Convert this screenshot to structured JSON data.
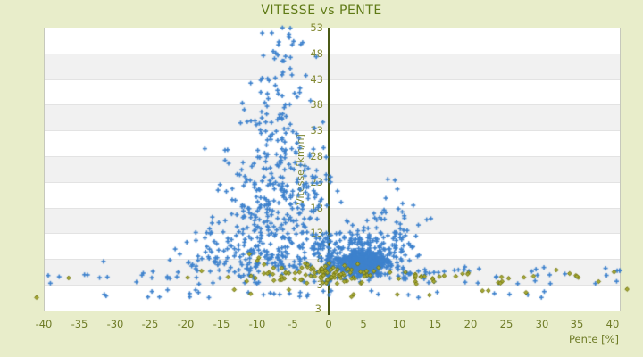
{
  "header": {
    "title": "VITESSE vs PENTE"
  },
  "axes": {
    "x": {
      "title": "Pente [%]",
      "ticks": [
        -40,
        -35,
        -30,
        -25,
        -20,
        -15,
        -10,
        -5,
        0,
        5,
        10,
        15,
        20,
        25,
        30,
        35,
        40
      ]
    },
    "y": {
      "title": "Vitesse [km/h]",
      "ticks": [
        53,
        48,
        43,
        38,
        33,
        28,
        23,
        18,
        13,
        8,
        3
      ],
      "min_edge_label": "3"
    }
  },
  "colors": {
    "background": "#e8edca",
    "plot_background": "#ffffff",
    "band_alt": "#f1f1f1",
    "band_border": "#e3e3e3",
    "plot_border": "#c6c8bc",
    "zero_line": "#4b5a17",
    "blue_marker": "#3e82cd",
    "olive_marker_fill": "#a8ab35",
    "olive_marker_stroke": "#6f720c",
    "title_text": "#5f7a16",
    "tick_text": "#6e7b26"
  },
  "chart_data": {
    "type": "scatter",
    "title": "VITESSE vs PENTE",
    "xlabel": "Pente [%]",
    "ylabel": "Vitesse [km/h]",
    "xlim": [
      -40,
      41.1
    ],
    "ylim": [
      -2.05,
      53
    ],
    "x_tick_step": 5,
    "y_tick_step": 5,
    "grid": "horizontal-bands-alternating",
    "legend": "none",
    "n_points_estimate": 1620,
    "seed": 20407,
    "series": [
      {
        "name": "vitesse-vs-pente-main",
        "marker": "plus",
        "color": "#3e82cd",
        "clusters": [
          {
            "label": "descent-high-speed-column",
            "n": 75,
            "x": {
              "d": "g",
              "m": -6.3,
              "s": 2.0,
              "lo": -11,
              "hi": -1.5
            },
            "y": {
              "d": "u",
              "lo": 27,
              "hi": 53.2
            }
          },
          {
            "label": "mid-speed-cone",
            "n": 230,
            "x": {
              "d": "g",
              "m": -7,
              "s": 4.2,
              "lo": -22,
              "hi": 2
            },
            "y": {
              "d": "g",
              "m": 20,
              "s": 5.5,
              "lo": 10,
              "hi": 39
            }
          },
          {
            "label": "upper-scatter",
            "n": 25,
            "x": {
              "d": "g",
              "m": -9,
              "s": 4,
              "lo": -18,
              "hi": -2
            },
            "y": {
              "d": "g",
              "m": 33,
              "s": 4,
              "lo": 27,
              "hi": 44
            }
          },
          {
            "label": "low-speed-wide-spread",
            "n": 270,
            "x": {
              "d": "g",
              "m": -7.5,
              "s": 7.5,
              "lo": -34,
              "hi": 8
            },
            "y": {
              "d": "g",
              "m": 8.5,
              "s": 3.2,
              "lo": 3.1,
              "hi": 19
            }
          },
          {
            "label": "dense-climb-blob",
            "n": 520,
            "x": {
              "d": "g",
              "m": 4.9,
              "s": 1.8,
              "lo": 0.3,
              "hi": 10.8
            },
            "y": {
              "d": "g",
              "m": 7.1,
              "s": 1.25,
              "lo": 4.2,
              "hi": 11
            }
          },
          {
            "label": "climb-blob-halo",
            "n": 160,
            "x": {
              "d": "g",
              "m": 5.5,
              "s": 3.4,
              "lo": -1.5,
              "hi": 13.5
            },
            "y": {
              "d": "g",
              "m": 9,
              "s": 2.8,
              "lo": 3.4,
              "hi": 17.5
            }
          },
          {
            "label": "zero-slope-streak",
            "n": 50,
            "x": {
              "d": "g",
              "m": 0,
              "s": 0.16,
              "lo": -0.5,
              "hi": 0.5
            },
            "y": {
              "d": "u",
              "lo": 3.2,
              "hi": 12.8
            }
          },
          {
            "label": "moderate-climb-mid-speed",
            "n": 40,
            "x": {
              "d": "g",
              "m": 8.6,
              "s": 2.6,
              "lo": 3.5,
              "hi": 15
            },
            "y": {
              "d": "g",
              "m": 14.5,
              "s": 3.2,
              "lo": 10,
              "hi": 24
            }
          },
          {
            "label": "steep-climb-right-tail",
            "n": 50,
            "x": {
              "d": "p",
              "base": 10.5,
              "scale": 30.5,
              "pow": 2.0,
              "hi": 41
            },
            "y": {
              "d": "g",
              "m": 4.7,
              "s": 1.0,
              "lo": 3.1,
              "hi": 7.6
            }
          },
          {
            "label": "steep-descent-left-tail",
            "n": 16,
            "x": {
              "d": "u",
              "lo": -39.5,
              "hi": -21
            },
            "y": {
              "d": "g",
              "m": 4.4,
              "s": 0.7,
              "lo": 3.1,
              "hi": 6.2
            }
          },
          {
            "label": "near-zero-speed-row",
            "n": 26,
            "x": {
              "d": "u",
              "lo": -32,
              "hi": 13
            },
            "y": {
              "d": "u",
              "lo": 0.4,
              "hi": 2.2
            }
          },
          {
            "label": "near-zero-speed-row-right",
            "n": 6,
            "x": {
              "d": "u",
              "lo": 14,
              "hi": 38
            },
            "y": {
              "d": "u",
              "lo": 0.5,
              "hi": 2.0
            }
          }
        ],
        "outliers": [
          [
            -2.5,
            38.8
          ],
          [
            -0.3,
            23.5
          ],
          [
            1.3,
            21.2
          ],
          [
            0.1,
            1.0
          ],
          [
            0.4,
            1.8
          ]
        ]
      },
      {
        "name": "secondary-track-points",
        "marker": "diamond",
        "color": "#a8ab35",
        "stroke": "#6f720c",
        "clusters": [
          {
            "label": "walking-speed-band",
            "n": 85,
            "x": {
              "d": "g",
              "m": -1,
              "s": 7,
              "lo": -27,
              "hi": 14
            },
            "y": {
              "d": "g",
              "m": 4.7,
              "s": 0.85,
              "lo": 3.1,
              "hi": 7.2
            }
          },
          {
            "label": "walking-band-mid",
            "n": 18,
            "x": {
              "d": "g",
              "m": -5,
              "s": 3.5,
              "lo": -12,
              "hi": 2
            },
            "y": {
              "d": "g",
              "m": 6.3,
              "s": 1.1,
              "lo": 4.6,
              "hi": 9
            }
          },
          {
            "label": "steep-climb-walking-tail",
            "n": 30,
            "x": {
              "d": "p",
              "base": 12,
              "scale": 29,
              "pow": 1.6,
              "hi": 41.3
            },
            "y": {
              "d": "g",
              "m": 4.4,
              "s": 0.8,
              "lo": 3.1,
              "hi": 6.4
            }
          },
          {
            "label": "stopped-row",
            "n": 10,
            "x": {
              "d": "u",
              "lo": -20,
              "hi": 30
            },
            "y": {
              "d": "u",
              "lo": 0.5,
              "hi": 2.2
            }
          }
        ],
        "outliers": [
          [
            -41,
            0.5
          ],
          [
            42,
            2.1
          ],
          [
            -36.5,
            4.3
          ],
          [
            38,
            3.6
          ]
        ]
      }
    ]
  },
  "layout_note": "horizontal bands alternate white/light-gray every 5 km/h; vertical dark-olive axis line at pente=0; y tick labels left of the zero line"
}
